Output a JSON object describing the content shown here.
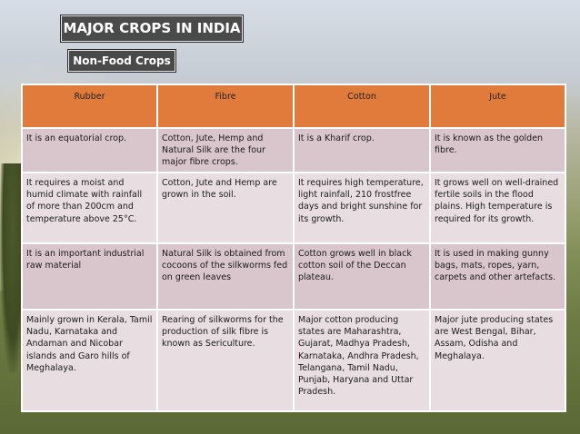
{
  "title": "MAJOR CROPS IN INDIA",
  "subtitle": "Non-Food Crops",
  "table": {
    "headers": [
      "Rubber",
      "Fibre",
      "Cotton",
      "Jute"
    ],
    "rows": [
      [
        "It is an equatorial crop.",
        "Cotton, Jute, Hemp and Natural Silk are the four major fibre crops.",
        "It is a Kharif crop.",
        "It is known as the golden fibre."
      ],
      [
        "It requires a moist and humid climate with rainfall of more than 200cm and temperature above 25°C.",
        "Cotton, Jute and Hemp are grown in the soil.",
        "It requires high temperature, light rainfall, 210 frostfree days and bright sunshine for its growth.",
        "It grows well on well-drained fertile soils in the flood plains. High temperature is required for its growth."
      ],
      [
        "It is an important industrial raw material",
        "Natural Silk is obtained from cocoons of the silkworms fed on green leaves",
        "Cotton grows well in black cotton soil of the Deccan plateau.",
        "It is used in making gunny bags, mats, ropes, yarn, carpets and other artefacts."
      ],
      [
        "Mainly grown in Kerala, Tamil Nadu, Karnataka and Andaman and Nicobar islands and Garo hills of Meghalaya.",
        "Rearing of silkworms for the production of silk fibre is known as Sericulture.",
        "Major cotton producing states are Maharashtra, Gujarat, Madhya Pradesh, Karnataka, Andhra Pradesh, Telangana, Tamil Nadu, Punjab, Haryana and Uttar Pradesh.",
        "Major jute producing states are West Bengal, Bihar, Assam, Odisha and Meghalaya."
      ]
    ]
  },
  "colors": {
    "header_bg": "#e17b3c",
    "row_odd_bg": "#d9c6cc",
    "row_even_bg": "#e8dde0",
    "title_bg": "#4a4a4a"
  }
}
